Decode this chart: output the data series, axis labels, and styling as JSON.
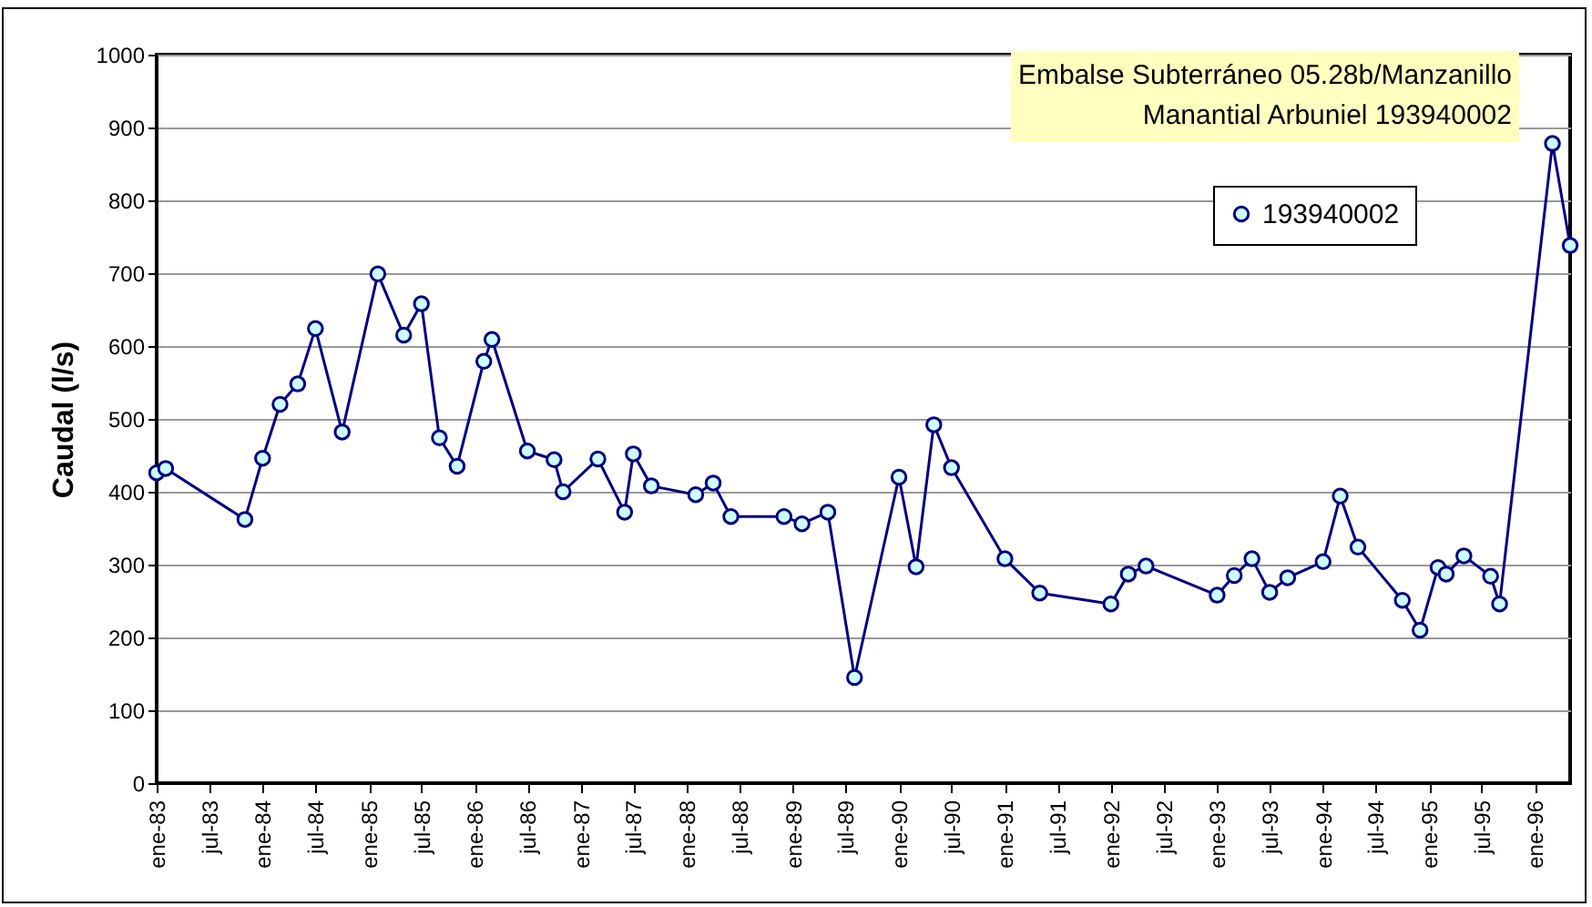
{
  "chart_data": {
    "type": "line",
    "ylabel": "Caudal (l/s)",
    "annotations": [
      "Embalse Subterráneo 05.28b/Manzanillo",
      "Manantial Arbuniel 193940002"
    ],
    "x": [
      "1983-01",
      "1983-02",
      "1983-11",
      "1984-01",
      "1984-03",
      "1984-05",
      "1984-07",
      "1984-10",
      "1985-02",
      "1985-05",
      "1985-07",
      "1985-09",
      "1985-11",
      "1986-02",
      "1986-03",
      "1986-07",
      "1986-10",
      "1986-11",
      "1987-03",
      "1987-06",
      "1987-07",
      "1987-09",
      "1988-02",
      "1988-04",
      "1988-06",
      "1988-12",
      "1989-02",
      "1989-05",
      "1989-08",
      "1990-01",
      "1990-03",
      "1990-05",
      "1990-07",
      "1991-01",
      "1991-05",
      "1992-01",
      "1992-03",
      "1992-05",
      "1993-01",
      "1993-03",
      "1993-05",
      "1993-07",
      "1993-09",
      "1994-01",
      "1994-03",
      "1994-05",
      "1994-10",
      "1994-12",
      "1995-02",
      "1995-03",
      "1995-05",
      "1995-08",
      "1995-09",
      "1996-03",
      "1996-05"
    ],
    "series": [
      {
        "name": "193940002",
        "color": "#000080",
        "values": [
          426,
          432,
          362,
          446,
          520,
          548,
          624,
          482,
          699,
          615,
          658,
          474,
          435,
          579,
          609,
          456,
          444,
          400,
          445,
          372,
          452,
          408,
          396,
          412,
          366,
          366,
          356,
          372,
          145,
          420,
          297,
          492,
          433,
          308,
          261,
          246,
          287,
          298,
          258,
          285,
          308,
          262,
          282,
          304,
          394,
          324,
          251,
          210,
          296,
          287,
          312,
          284,
          246,
          878,
          738
        ]
      }
    ],
    "xlim": [
      "1983-01",
      "1996-05"
    ],
    "xticks": [
      {
        "value": "1983-01",
        "label": "ene-83"
      },
      {
        "value": "1983-07",
        "label": "jul-83"
      },
      {
        "value": "1984-01",
        "label": "ene-84"
      },
      {
        "value": "1984-07",
        "label": "jul-84"
      },
      {
        "value": "1985-01",
        "label": "ene-85"
      },
      {
        "value": "1985-07",
        "label": "jul-85"
      },
      {
        "value": "1986-01",
        "label": "ene-86"
      },
      {
        "value": "1986-07",
        "label": "jul-86"
      },
      {
        "value": "1987-01",
        "label": "ene-87"
      },
      {
        "value": "1987-07",
        "label": "jul-87"
      },
      {
        "value": "1988-01",
        "label": "ene-88"
      },
      {
        "value": "1988-07",
        "label": "jul-88"
      },
      {
        "value": "1989-01",
        "label": "ene-89"
      },
      {
        "value": "1989-07",
        "label": "jul-89"
      },
      {
        "value": "1990-01",
        "label": "ene-90"
      },
      {
        "value": "1990-07",
        "label": "jul-90"
      },
      {
        "value": "1991-01",
        "label": "ene-91"
      },
      {
        "value": "1991-07",
        "label": "jul-91"
      },
      {
        "value": "1992-01",
        "label": "ene-92"
      },
      {
        "value": "1992-07",
        "label": "jul-92"
      },
      {
        "value": "1993-01",
        "label": "ene-93"
      },
      {
        "value": "1993-07",
        "label": "jul-93"
      },
      {
        "value": "1994-01",
        "label": "ene-94"
      },
      {
        "value": "1994-07",
        "label": "jul-94"
      },
      {
        "value": "1995-01",
        "label": "ene-95"
      },
      {
        "value": "1995-07",
        "label": "jul-95"
      },
      {
        "value": "1996-01",
        "label": "ene-96"
      }
    ],
    "ylim": [
      0,
      1000
    ],
    "yticks": [
      0,
      100,
      200,
      300,
      400,
      500,
      600,
      700,
      800,
      900,
      1000
    ],
    "grid": "y",
    "legend": "top right",
    "marker": "circle",
    "line_style": "solid"
  }
}
